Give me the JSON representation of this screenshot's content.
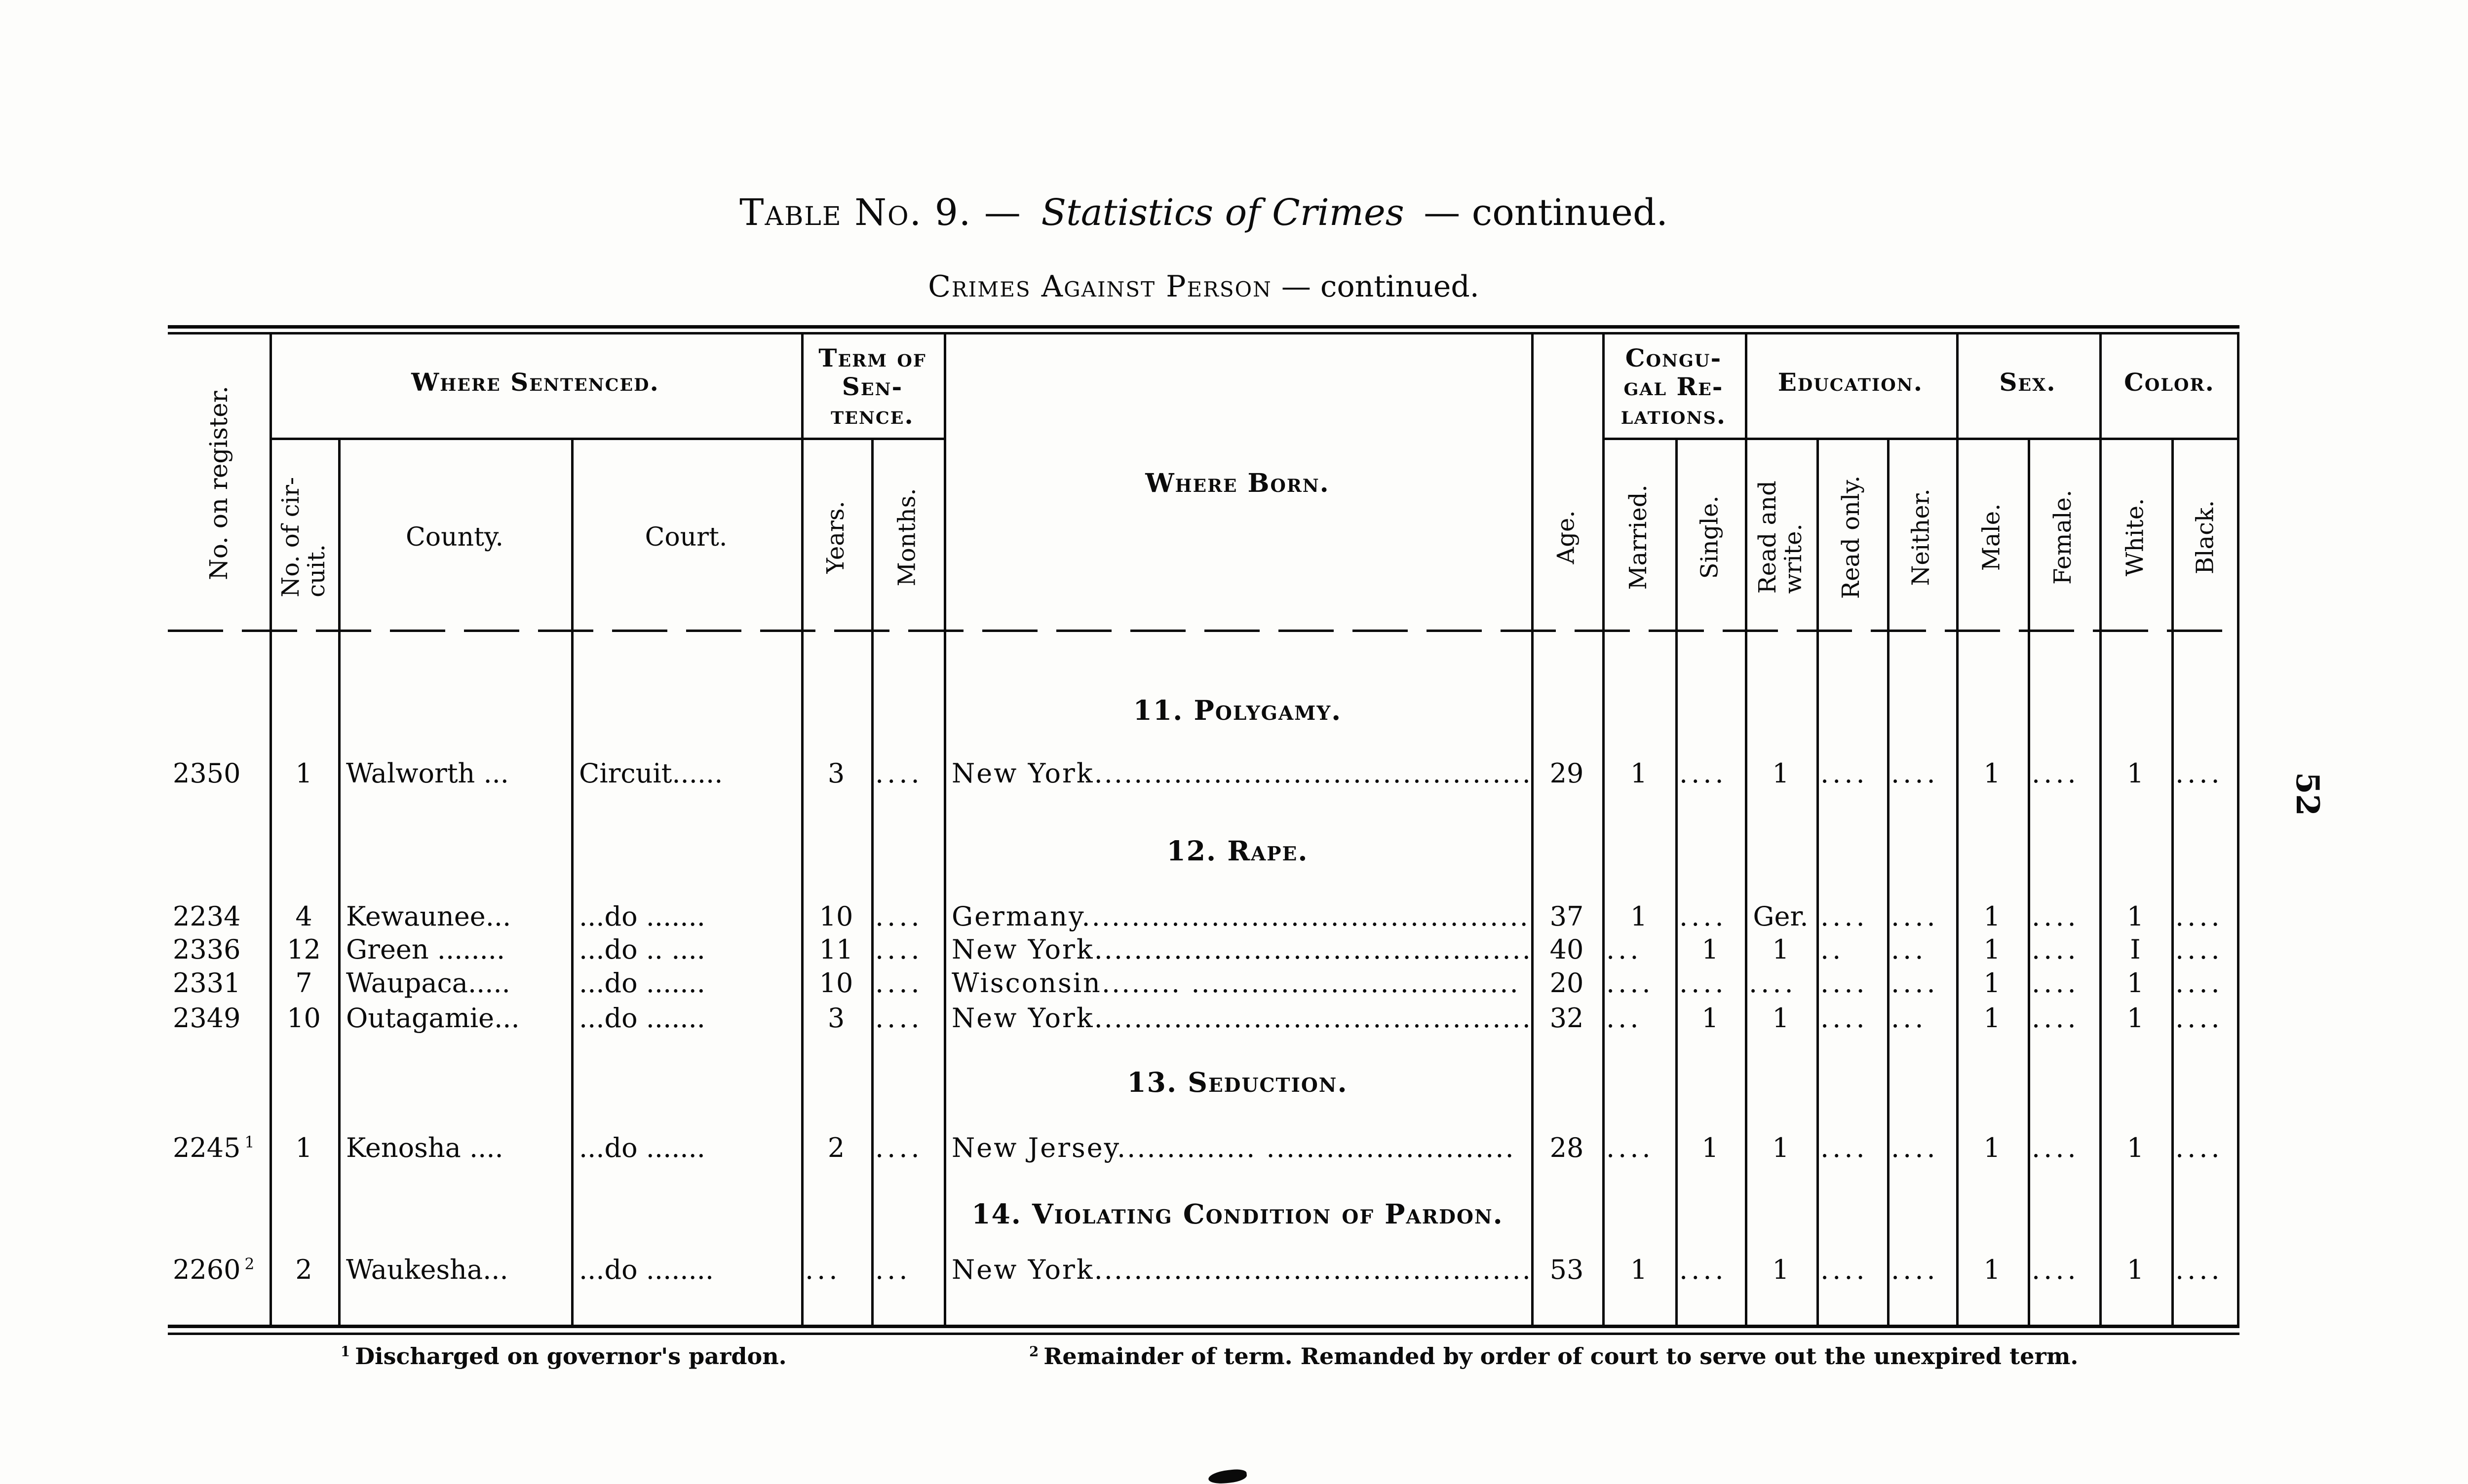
{
  "page": {
    "title": {
      "prefix": "Table No. 9. —",
      "emphasis": "Statistics of Crimes",
      "suffix": "— continued."
    },
    "subtitle": {
      "main": "Crimes Against Person",
      "suffix": " — continued."
    },
    "page_number": "52",
    "footnotes": [
      {
        "marker": "1",
        "text": "Discharged on governor's pardon."
      },
      {
        "marker": "2",
        "text": "Remainder of term.  Remanded by order of court to serve out the unexpired term."
      }
    ]
  },
  "table": {
    "header": {
      "register": "No. on register.",
      "where_sentenced": "Where Sentenced.",
      "circuit": "No. of cir-\ncuit.",
      "county": "County.",
      "court": "Court.",
      "term": "Term of\nSen-\ntence.",
      "years": "Years.",
      "months": "Months.",
      "where_born": "Where Born.",
      "age": "Age.",
      "congugal": "Congu-\ngal Re-\nlations.",
      "married": "Married.",
      "single": "Single.",
      "education": "Education.",
      "read_write": "Read and\nwrite.",
      "read_only": "Read only.",
      "neither": "Neither.",
      "sex": "Sex.",
      "male": "Male.",
      "female": "Female.",
      "color": "Color.",
      "white": "White.",
      "black": "Black."
    },
    "sections": [
      {
        "label": "11. Polygamy."
      },
      {
        "label": "12. Rape."
      },
      {
        "label": "13. Seduction."
      },
      {
        "label": "14. Violating Condition of Pardon."
      }
    ],
    "rows": [
      {
        "register": "2350",
        "sup": "",
        "circuit": "1",
        "county": "Walworth ...",
        "court": "Circuit......",
        "years": "3",
        "months": "....",
        "born": "New York..................................................",
        "age": "29",
        "married": "1",
        "single": "....",
        "read_write": "1",
        "read_only": "....",
        "neither": "....",
        "male": "1",
        "female": "....",
        "white": "1",
        "black": "...."
      },
      {
        "register": "2234",
        "sup": "",
        "circuit": "4",
        "county": "Kewaunee...",
        "court": "...do .......",
        "years": "10",
        "months": "....",
        "born": "Germany...................................................",
        "age": "37",
        "married": "1",
        "single": "....",
        "read_write": "Ger.",
        "read_only": "....",
        "neither": "....",
        "male": "1",
        "female": "....",
        "white": "1",
        "black": "...."
      },
      {
        "register": "2336",
        "sup": "",
        "circuit": "12",
        "county": "Green ........",
        "court": "...do .. ....",
        "years": "11",
        "months": "....",
        "born": "New York..................................................",
        "age": "40",
        "married": "...",
        "single": "1",
        "read_write": "1",
        "read_only": "..",
        "neither": "...",
        "male": "1",
        "female": "....",
        "white": "I",
        "black": "...."
      },
      {
        "register": "2331",
        "sup": "",
        "circuit": "7",
        "county": "Waupaca.....",
        "court": "...do .......",
        "years": "10",
        "months": "....",
        "born": "Wisconsin........ .................................",
        "age": "20",
        "married": "....",
        "single": "....",
        "read_write": "....",
        "read_only": "....",
        "neither": "....",
        "male": "1",
        "female": "....",
        "white": "1",
        "black": "...."
      },
      {
        "register": "2349",
        "sup": "",
        "circuit": "10",
        "county": "Outagamie...",
        "court": "...do .......",
        "years": "3",
        "months": "....",
        "born": "New York..................................................",
        "age": "32",
        "married": "...",
        "single": "1",
        "read_write": "1",
        "read_only": "....",
        "neither": "...",
        "male": "1",
        "female": "....",
        "white": "1",
        "black": "...."
      },
      {
        "register": "2245",
        "sup": "1",
        "circuit": "1",
        "county": "Kenosha ....",
        "court": "...do .......",
        "years": "2",
        "months": "....",
        "born": "New Jersey.............. .........................",
        "age": "28",
        "married": "....",
        "single": "1",
        "read_write": "1",
        "read_only": "....",
        "neither": "....",
        "male": "1",
        "female": "....",
        "white": "1",
        "black": "...."
      },
      {
        "register": "2260",
        "sup": "2",
        "circuit": "2",
        "county": "Waukesha...",
        "court": "...do ........",
        "years": "...",
        "months": "...",
        "born": "New York..................................................",
        "age": "53",
        "married": "1",
        "single": "....",
        "read_write": "1",
        "read_only": "....",
        "neither": "....",
        "male": "1",
        "female": "....",
        "white": "1",
        "black": "...."
      }
    ]
  }
}
